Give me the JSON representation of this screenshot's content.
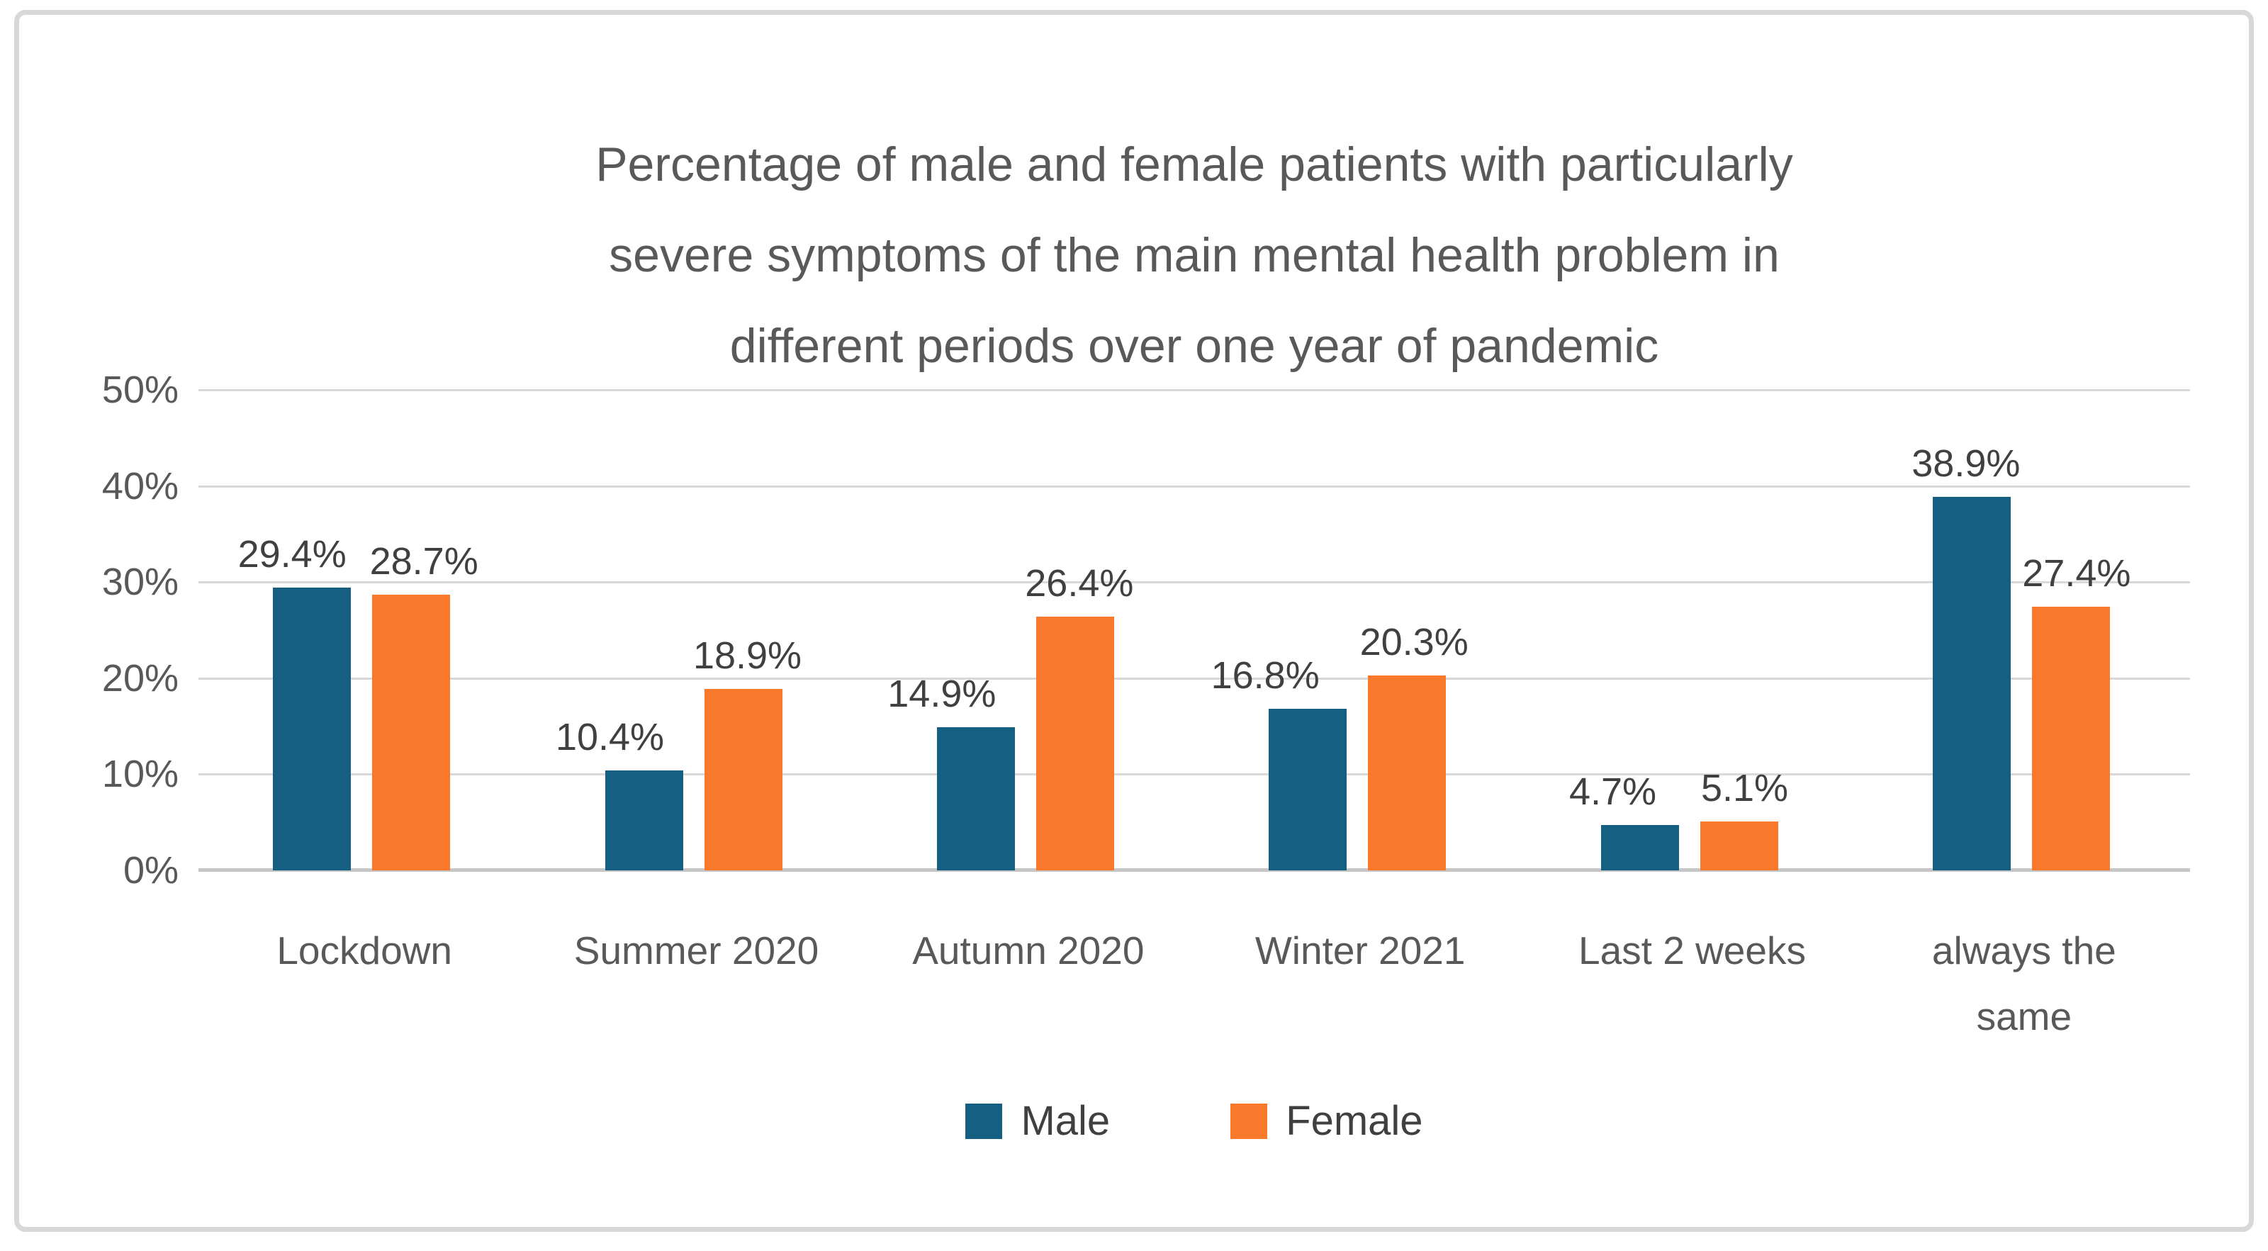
{
  "chart_data": {
    "type": "bar",
    "title_lines": [
      "Percentage of male and female patients with  particularly",
      "severe symptoms of the main mental health problem in",
      "different periods over one year of pandemic"
    ],
    "categories": [
      "Lockdown",
      "Summer 2020",
      "Autumn 2020",
      "Winter 2021",
      "Last 2 weeks",
      "always the same"
    ],
    "series": [
      {
        "name": "Male",
        "color": "#156082",
        "values": [
          29.4,
          10.4,
          14.9,
          16.8,
          4.7,
          38.9
        ],
        "value_labels": [
          "29.4%",
          "10.4%",
          "14.9%",
          "16.8%",
          "4.7%",
          "38.9%"
        ]
      },
      {
        "name": "Female",
        "color": "#F8792B",
        "values": [
          28.7,
          18.9,
          26.4,
          20.3,
          5.1,
          27.4
        ],
        "value_labels": [
          "28.7%",
          "18.9%",
          "26.4%",
          "20.3%",
          "5.1%",
          "27.4%"
        ]
      }
    ],
    "ylabel": "",
    "xlabel": "",
    "ylim": [
      0,
      50
    ],
    "ytick_labels": [
      "0%",
      "10%",
      "20%",
      "30%",
      "40%",
      "50%"
    ],
    "ytick_values": [
      0,
      10,
      20,
      30,
      40,
      50
    ],
    "grid": "horizontal",
    "legend_position": "bottom",
    "colors": {
      "gridline": "#d9d9d9",
      "axis_line": "#c6c6c6",
      "title_text": "#595959",
      "tick_text": "#595959",
      "value_label_text": "#404040",
      "frame_border": "#d8d8d8"
    }
  }
}
